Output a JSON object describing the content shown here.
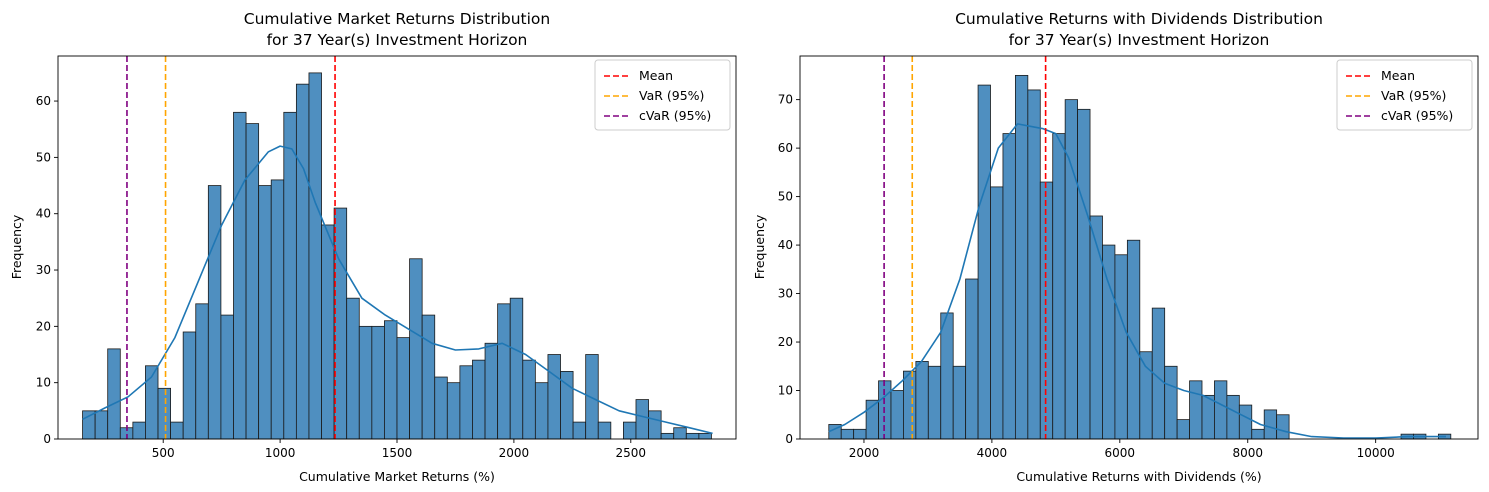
{
  "chart_data": [
    {
      "type": "histogram",
      "title_line1": "Cumulative Market Returns Distribution",
      "title_line2": "for 37 Year(s) Investment Horizon",
      "xlabel": "Cumulative Market Returns (%)",
      "ylabel": "Frequency",
      "xlim": [
        50,
        2950
      ],
      "ylim": [
        0,
        68
      ],
      "xticks": [
        500,
        1000,
        1500,
        2000,
        2500
      ],
      "yticks": [
        0,
        10,
        20,
        30,
        40,
        50,
        60
      ],
      "bins": {
        "start": 155,
        "width": 53.8,
        "counts": [
          5,
          5,
          16,
          2,
          3,
          13,
          9,
          3,
          19,
          24,
          45,
          22,
          58,
          56,
          45,
          46,
          58,
          63,
          65,
          38,
          41,
          25,
          20,
          20,
          21,
          18,
          32,
          22,
          11,
          10,
          13,
          14,
          17,
          24,
          25,
          14,
          10,
          15,
          12,
          3,
          15,
          3,
          0,
          3,
          7,
          5,
          1,
          2,
          1,
          1
        ]
      },
      "kde": {
        "x": [
          155,
          250,
          350,
          450,
          550,
          650,
          750,
          850,
          950,
          1000,
          1050,
          1100,
          1150,
          1250,
          1350,
          1450,
          1550,
          1650,
          1750,
          1850,
          1950,
          2050,
          2150,
          2250,
          2350,
          2450,
          2550,
          2650,
          2750,
          2850
        ],
        "y": [
          3.5,
          5.5,
          7.5,
          11,
          18,
          28,
          38,
          46,
          51,
          52,
          51.5,
          48,
          42,
          32,
          25,
          22,
          19.5,
          17,
          15.8,
          16,
          17,
          15,
          12,
          9,
          7,
          5,
          4,
          3,
          2,
          1
        ]
      },
      "vlines": [
        {
          "label": "Mean",
          "x": 1235,
          "color": "#ff0000"
        },
        {
          "label": "VaR (95%)",
          "x": 510,
          "color": "#ffa500"
        },
        {
          "label": "cVaR (95%)",
          "x": 345,
          "color": "#800080"
        }
      ],
      "legend": "upper right",
      "bar_color": "#4f8fc0",
      "line_color": "#1f77b4"
    },
    {
      "type": "histogram",
      "title_line1": "Cumulative Returns with Dividends Distribution",
      "title_line2": "for 37 Year(s) Investment Horizon",
      "xlabel": "Cumulative Returns with Dividends (%)",
      "ylabel": "Frequency",
      "xlim": [
        1000,
        11600
      ],
      "ylim": [
        0,
        79
      ],
      "xticks": [
        2000,
        4000,
        6000,
        8000,
        10000
      ],
      "yticks": [
        0,
        10,
        20,
        30,
        40,
        50,
        60,
        70
      ],
      "bins": {
        "start": 1450,
        "width": 194.5,
        "counts": [
          3,
          2,
          2,
          8,
          12,
          10,
          14,
          16,
          15,
          26,
          15,
          33,
          73,
          52,
          63,
          75,
          72,
          53,
          63,
          70,
          68,
          46,
          40,
          38,
          41,
          18,
          27,
          15,
          4,
          12,
          9,
          12,
          9,
          7,
          2,
          6,
          5,
          0,
          0,
          0,
          0,
          0,
          0,
          0,
          0,
          0,
          1,
          1,
          0,
          1
        ]
      },
      "kde": {
        "x": [
          1450,
          1700,
          2000,
          2300,
          2600,
          2900,
          3200,
          3500,
          3800,
          4100,
          4400,
          4600,
          4800,
          5000,
          5200,
          5500,
          5800,
          6100,
          6400,
          6700,
          7000,
          7300,
          7600,
          7900,
          8200,
          8600,
          9000,
          9500,
          10000,
          10500,
          11100
        ],
        "y": [
          1.5,
          3,
          5.5,
          8.5,
          12,
          16,
          22,
          33,
          48,
          60,
          65,
          64.5,
          64,
          63,
          58,
          46,
          33,
          22,
          15,
          11.5,
          10,
          9,
          7,
          5,
          3,
          1.5,
          0.5,
          0.2,
          0.2,
          0.5,
          0.5
        ]
      },
      "vlines": [
        {
          "label": "Mean",
          "x": 4840,
          "color": "#ff0000"
        },
        {
          "label": "VaR (95%)",
          "x": 2755,
          "color": "#ffa500"
        },
        {
          "label": "cVaR (95%)",
          "x": 2315,
          "color": "#800080"
        }
      ],
      "legend": "upper right",
      "bar_color": "#4f8fc0",
      "line_color": "#1f77b4"
    }
  ]
}
